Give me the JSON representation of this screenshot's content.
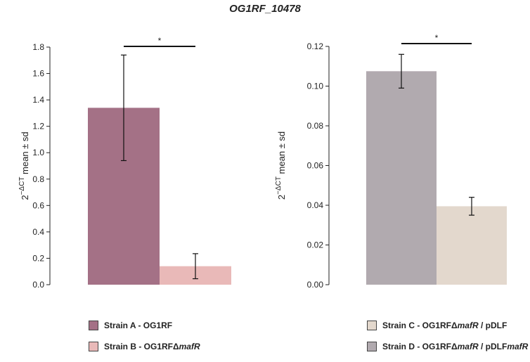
{
  "title": "OG1RF_10478",
  "chart_data": [
    {
      "type": "bar",
      "ylabel_prefix": "2",
      "ylabel_exponent": "−ΔCT",
      "ylabel_suffix": "mean ± sd",
      "ylim": [
        0,
        1.8
      ],
      "yticks": [
        "0.0",
        "0.2",
        "0.4",
        "0.6",
        "0.8",
        "1.0",
        "1.2",
        "1.4",
        "1.6",
        "1.8"
      ],
      "yticks_values": [
        0,
        0.2,
        0.4,
        0.6,
        0.8,
        1.0,
        1.2,
        1.4,
        1.6,
        1.8
      ],
      "series": [
        {
          "name": "Strain A - OG1RF",
          "value": 1.34,
          "error": 0.4,
          "color": "#a47186"
        },
        {
          "name": "Strain B - OG1RFΔmafR",
          "value": 0.14,
          "error": 0.095,
          "color": "#e9b9b8"
        }
      ],
      "significance": "*"
    },
    {
      "type": "bar",
      "ylabel_prefix": "2",
      "ylabel_exponent": "−ΔCT",
      "ylabel_suffix": "mean ± sd",
      "ylim": [
        0,
        0.12
      ],
      "yticks": [
        "0.00",
        "0.02",
        "0.04",
        "0.06",
        "0.08",
        "0.10",
        "0.12"
      ],
      "yticks_values": [
        0,
        0.02,
        0.04,
        0.06,
        0.08,
        0.1,
        0.12
      ],
      "series": [
        {
          "name": "Strain D - OG1RFΔmafR / pDLFmafR",
          "value": 0.1075,
          "error": 0.0085,
          "color": "#b1aaaf"
        },
        {
          "name": "Strain C - OG1RFΔmafR / pDLF",
          "value": 0.0395,
          "error": 0.0045,
          "color": "#e3d8cd"
        }
      ],
      "significance": "*"
    }
  ],
  "legend_left": [
    {
      "prefix": "Strain A - OG1RF",
      "italic": "",
      "suffix": "",
      "color": "#a47186"
    },
    {
      "prefix": "Strain B - OG1RFΔ",
      "italic": "mafR",
      "suffix": "",
      "color": "#e9b9b8"
    }
  ],
  "legend_right": [
    {
      "prefix": "Strain C - OG1RFΔ",
      "italic": "mafR",
      "suffix": " / pDLF",
      "color": "#e3d8cd"
    },
    {
      "prefix": "Strain D - OG1RFΔ",
      "italic": "mafR",
      "suffix": " / pDLF",
      "italic2": "mafR",
      "color": "#b1aaaf"
    }
  ]
}
